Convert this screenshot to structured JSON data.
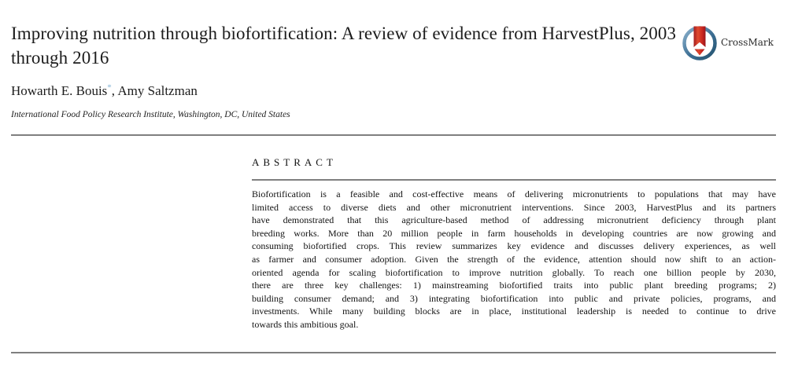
{
  "paper": {
    "title": "Improving nutrition through biofortification: A review of evidence from HarvestPlus, 2003 through 2016",
    "authors": {
      "author1": "Howarth E. Bouis",
      "corresponding_mark": "*",
      "corresponding_mark_color": "#7fb2d4",
      "author2": ", Amy Saltzman"
    },
    "affiliation": "International Food Policy Research Institute, Washington, DC, United States"
  },
  "crossmark": {
    "label": "CrossMark",
    "ring_color": "#3c6e93",
    "mark_color": "#c6241f"
  },
  "abstract": {
    "heading": "ABSTRACT",
    "lines": [
      "Biofortification is a feasible and cost-effective means of delivering micronutrients to populations that may have",
      "limited access to diverse diets and other micronutrient interventions. Since 2003, HarvestPlus and its partners",
      "have demonstrated that this agriculture-based method of addressing micronutrient deficiency through plant",
      "breeding works. More than 20 million people in farm households in developing countries are now growing and",
      "consuming biofortified crops. This review summarizes key evidence and discusses delivery experiences, as well",
      "as farmer and consumer adoption. Given the strength of the evidence, attention should now shift to an action-",
      "oriented agenda for scaling biofortification to improve nutrition globally. To reach one billion people by 2030,",
      "there are three key challenges: 1) mainstreaming biofortified traits into public plant breeding programs; 2)",
      "building consumer demand; and 3) integrating biofortification into public and private policies, programs, and",
      "investments. While many building blocks are in place, institutional leadership is needed to continue to drive",
      "towards this ambitious goal."
    ]
  }
}
